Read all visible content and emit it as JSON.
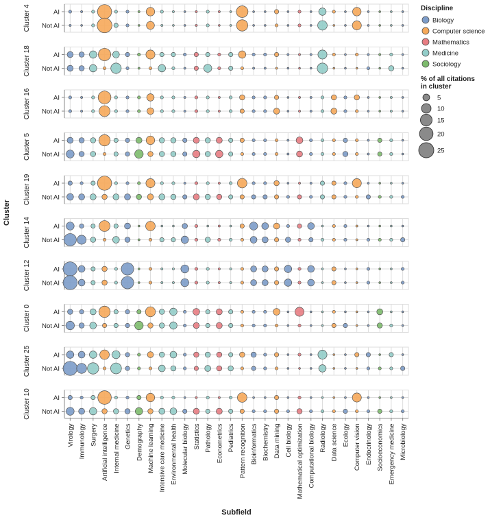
{
  "chart_data": {
    "type": "scatter",
    "xlabel": "Subfield",
    "ylabel": "Cluster",
    "categories": [
      "Virology",
      "Immunology",
      "Surgery",
      "Artificial intelligence",
      "Internal medicine",
      "Genetics",
      "Demography",
      "Machine learning",
      "Intensive care medicine",
      "Environmental health",
      "Molecular biology",
      "Statistics",
      "Pathology",
      "Econometrics",
      "Pediatrics",
      "Pattern recognition",
      "Bioinformatics",
      "Biochemistry",
      "Data mining",
      "Cell biology",
      "Mathematical optimization",
      "Computational biology",
      "Radiology",
      "Data science",
      "Ecology",
      "Computer vision",
      "Endocrinology",
      "Socioeconomics",
      "Emergency medicine",
      "Microbiology"
    ],
    "discipline_of_subfield": [
      "Biology",
      "Biology",
      "Medicine",
      "Computer science",
      "Medicine",
      "Biology",
      "Sociology",
      "Computer science",
      "Medicine",
      "Medicine",
      "Biology",
      "Mathematics",
      "Medicine",
      "Mathematics",
      "Medicine",
      "Computer science",
      "Biology",
      "Biology",
      "Computer science",
      "Biology",
      "Mathematics",
      "Biology",
      "Medicine",
      "Computer science",
      "Biology",
      "Computer science",
      "Biology",
      "Sociology",
      "Medicine",
      "Biology"
    ],
    "row_labels": [
      "AI",
      "Not AI"
    ],
    "colors": {
      "Biology": "#7c9cc9",
      "Computer science": "#f6a95a",
      "Mathematics": "#e87d83",
      "Medicine": "#93cdc9",
      "Sociology": "#7dbb6d"
    },
    "legend": {
      "color_title": "Discipline",
      "disciplines": [
        "Biology",
        "Computer science",
        "Mathematics",
        "Medicine",
        "Sociology"
      ],
      "size_title": [
        "% of all citations",
        "in cluster"
      ],
      "size_values": [
        5,
        10,
        15,
        20,
        25
      ],
      "placement": "right"
    },
    "clusters": [
      {
        "label": "Cluster 4",
        "ai": [
          1,
          0.5,
          1,
          22,
          1,
          1,
          0.5,
          8,
          1,
          0.5,
          0.3,
          0.5,
          1,
          0.5,
          0.3,
          15,
          0.3,
          0.3,
          2,
          0.3,
          1,
          0.3,
          6,
          1,
          0.3,
          8,
          0.3,
          0.3,
          0.3,
          0.3
        ],
        "notai": [
          0.5,
          0.3,
          1,
          24,
          2,
          1,
          0.3,
          7,
          0.5,
          0.3,
          0.3,
          0.5,
          1,
          0.3,
          0.3,
          14,
          0.3,
          0.3,
          1,
          0.3,
          1,
          0.3,
          10,
          0.3,
          0.3,
          9,
          0.3,
          0.3,
          0.3,
          0.3
        ]
      },
      {
        "label": "Cluster 18",
        "ai": [
          4,
          3,
          6,
          17,
          5,
          2,
          1,
          9,
          2,
          2,
          1,
          2,
          2,
          1,
          2,
          6,
          1,
          1,
          2,
          0.5,
          0.5,
          0.5,
          9,
          1,
          0.3,
          1,
          0.5,
          0.5,
          1,
          0.3
        ],
        "notai": [
          4,
          3,
          6,
          1,
          12,
          1,
          0.5,
          1,
          6,
          1,
          0.5,
          2,
          7,
          1,
          2,
          1,
          0.5,
          0.5,
          0.5,
          0.3,
          0.3,
          0.3,
          12,
          0.3,
          0.3,
          0.3,
          1,
          0.3,
          3,
          0.3
        ]
      },
      {
        "label": "Cluster 16",
        "ai": [
          1,
          0.5,
          1,
          18,
          1,
          1,
          1,
          6,
          1,
          1,
          0.5,
          1,
          1,
          0.5,
          1,
          3,
          1,
          1,
          2,
          0.3,
          0.5,
          0.5,
          1,
          3,
          1,
          3,
          0.3,
          0.3,
          0.5,
          0.3
        ],
        "notai": [
          1,
          0.5,
          1,
          13,
          1,
          1,
          1,
          5,
          1,
          1,
          0.5,
          1,
          1,
          0.5,
          1,
          2,
          1,
          1,
          4,
          0.3,
          0.5,
          0.5,
          1,
          4,
          1,
          1,
          0.3,
          0.3,
          0.5,
          0.3
        ]
      },
      {
        "label": "Cluster 5",
        "ai": [
          4,
          3,
          3,
          14,
          2,
          2,
          4,
          8,
          3,
          3,
          2,
          4,
          3,
          4,
          2,
          2,
          1,
          1,
          1,
          0.5,
          5,
          1,
          1,
          1,
          2,
          1,
          0.5,
          2,
          1,
          0.3
        ],
        "notai": [
          7,
          3,
          3,
          1,
          2,
          2,
          8,
          3,
          3,
          3,
          2,
          6,
          3,
          6,
          2,
          1,
          1,
          1,
          1,
          0.5,
          4,
          1,
          1,
          1,
          3,
          1,
          0.5,
          2,
          1,
          0.3
        ]
      },
      {
        "label": "Cluster 19",
        "ai": [
          2,
          1,
          2,
          22,
          1,
          1,
          1,
          9,
          1,
          1,
          0.5,
          1,
          1,
          0.5,
          1,
          10,
          1,
          1,
          3,
          0.3,
          0.5,
          0.5,
          2,
          2,
          1,
          9,
          0.3,
          0.3,
          0.3,
          0.3
        ],
        "notai": [
          5,
          4,
          4,
          3,
          4,
          4,
          3,
          4,
          4,
          3,
          2,
          4,
          3,
          3,
          2,
          2,
          2,
          2,
          2,
          1,
          2,
          1,
          2,
          2,
          1,
          1,
          2,
          1,
          1,
          1
        ]
      },
      {
        "label": "Cluster 14",
        "ai": [
          7,
          2,
          2,
          13,
          2,
          4,
          0.3,
          10,
          0.3,
          0.3,
          3,
          1,
          0.3,
          0.5,
          0.3,
          2,
          7,
          5,
          4,
          1,
          2,
          5,
          0.3,
          1,
          1,
          0.5,
          0.3,
          0.3,
          0.3,
          0.3
        ],
        "notai": [
          17,
          9,
          3,
          1,
          5,
          3,
          0.5,
          1,
          2,
          2,
          6,
          1,
          3,
          1,
          1,
          1,
          5,
          4,
          2,
          3,
          1,
          2,
          1,
          1,
          1,
          0.5,
          1,
          1,
          1,
          2
        ]
      },
      {
        "label": "Cluster 12",
        "ai": [
          22,
          5,
          2,
          3,
          1,
          17,
          0.3,
          1,
          0.5,
          0.5,
          7,
          1,
          1,
          0.5,
          0.5,
          1,
          4,
          4,
          2,
          6,
          1,
          5,
          0.3,
          2,
          0.3,
          0.3,
          1,
          0.3,
          0.3,
          1
        ]
      },
      {
        "label": "Cluster 0",
        "ai": [
          3,
          2,
          4,
          14,
          2,
          2,
          2,
          11,
          3,
          6,
          1,
          5,
          2,
          4,
          2,
          1,
          1,
          1,
          5,
          0.3,
          9,
          0.3,
          0.3,
          1,
          0.3,
          0.3,
          0.3,
          4,
          0.3,
          0.3
        ],
        "notai": [
          8,
          3,
          5,
          2,
          2,
          2,
          8,
          3,
          3,
          6,
          1,
          4,
          2,
          4,
          2,
          1,
          1,
          1,
          1,
          0.3,
          1,
          0.3,
          0.3,
          2,
          2,
          0.3,
          0.3,
          3,
          1,
          0.3
        ]
      },
      {
        "label": "Cluster 25",
        "ai": [
          6,
          5,
          6,
          10,
          7,
          2,
          1,
          4,
          3,
          5,
          1,
          3,
          3,
          3,
          2,
          3,
          3,
          1,
          2,
          0.3,
          1,
          0.3,
          9,
          0.3,
          0.3,
          2,
          2,
          0.3,
          2,
          0.3
        ],
        "notai": [
          22,
          11,
          14,
          1,
          13,
          2,
          1,
          1,
          5,
          3,
          1,
          2,
          4,
          3,
          3,
          1,
          2,
          1,
          1,
          0.3,
          0.3,
          0.3,
          6,
          0.3,
          0.3,
          0.3,
          1,
          1,
          1,
          2
        ]
      },
      {
        "label": "Cluster 10",
        "ai": [
          2,
          1,
          2,
          20,
          1,
          1,
          2,
          8,
          1,
          1,
          0.3,
          0.5,
          1,
          0.5,
          1,
          10,
          0.3,
          0.3,
          2,
          0.3,
          1,
          0.3,
          0.3,
          0.3,
          0.3,
          9,
          0.3,
          0.3,
          0.3,
          0.3
        ],
        "notai": [
          7,
          4,
          6,
          3,
          3,
          3,
          6,
          3,
          4,
          5,
          2,
          4,
          2,
          4,
          2,
          2,
          1,
          1,
          2,
          1,
          3,
          1,
          1,
          1,
          2,
          1,
          1,
          2,
          1,
          1
        ]
      }
    ]
  }
}
